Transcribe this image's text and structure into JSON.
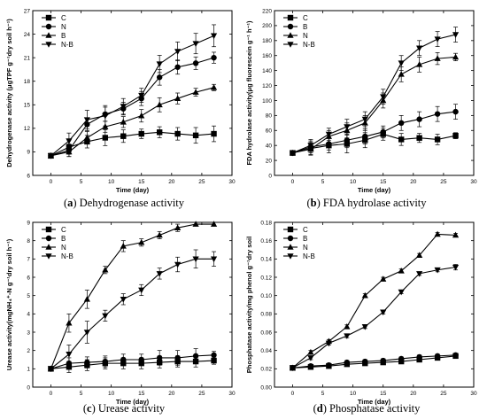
{
  "chart_data": [
    {
      "type": "line",
      "panel_label": "(a)",
      "caption": "Dehydrogenase activity",
      "xlabel": "Time (day)",
      "ylabel": "Dehydrogenase activity (μgTPF g⁻¹dry soil h⁻¹)",
      "xlim": [
        -3,
        30
      ],
      "ylim": [
        6,
        27
      ],
      "xticks": [
        0,
        5,
        10,
        15,
        20,
        25,
        30
      ],
      "yticks": [
        6,
        9,
        12,
        15,
        18,
        21,
        24,
        27
      ],
      "legend_position": "top-left",
      "x": [
        0,
        3,
        6,
        9,
        12,
        15,
        18,
        21,
        24,
        27
      ],
      "series": [
        {
          "name": "C",
          "marker": "square",
          "values": [
            8.5,
            9.6,
            10.3,
            10.8,
            11.0,
            11.3,
            11.5,
            11.3,
            11.1,
            11.3
          ],
          "err": [
            0.2,
            0.9,
            0.8,
            1.0,
            0.8,
            0.6,
            0.7,
            0.8,
            1.0,
            1.0
          ]
        },
        {
          "name": "N",
          "marker": "circle",
          "values": [
            8.5,
            9.2,
            12.5,
            13.8,
            14.5,
            15.8,
            18.5,
            19.8,
            20.3,
            21.0
          ],
          "err": [
            0.2,
            0.8,
            0.8,
            0.9,
            0.8,
            0.9,
            1.0,
            0.9,
            0.8,
            0.7
          ]
        },
        {
          "name": "B",
          "marker": "triangle-up",
          "values": [
            8.5,
            9.0,
            10.8,
            12.2,
            12.8,
            13.6,
            15.0,
            15.8,
            16.6,
            17.2
          ],
          "err": [
            0.2,
            0.6,
            0.8,
            0.7,
            0.7,
            0.8,
            0.9,
            0.7,
            0.5,
            0.4
          ]
        },
        {
          "name": "N-B",
          "marker": "triangle-down",
          "values": [
            8.5,
            10.4,
            13.1,
            13.6,
            14.8,
            16.2,
            20.2,
            21.8,
            22.8,
            23.8
          ],
          "err": [
            0.2,
            1.0,
            1.2,
            1.3,
            1.0,
            0.9,
            1.1,
            1.2,
            1.3,
            1.4
          ]
        }
      ]
    },
    {
      "type": "line",
      "panel_label": "(b)",
      "caption": "FDA hydrolase activity",
      "xlabel": "Time (day)",
      "ylabel": "FDA hydrolase activity(μg fluorescein g⁻¹ h⁻¹)",
      "xlim": [
        -3,
        30
      ],
      "ylim": [
        0,
        220
      ],
      "xticks": [
        0,
        5,
        10,
        15,
        20,
        25,
        30
      ],
      "yticks": [
        0,
        20,
        40,
        60,
        80,
        100,
        120,
        140,
        160,
        180,
        200,
        220
      ],
      "legend_position": "top-left",
      "x": [
        0,
        3,
        6,
        9,
        12,
        15,
        18,
        21,
        24,
        27
      ],
      "series": [
        {
          "name": "C",
          "marker": "square",
          "values": [
            30,
            36,
            40,
            42,
            47,
            55,
            48,
            50,
            48,
            53
          ],
          "err": [
            3,
            8,
            10,
            12,
            10,
            8,
            8,
            6,
            7,
            4
          ]
        },
        {
          "name": "B",
          "marker": "circle",
          "values": [
            30,
            38,
            42,
            47,
            52,
            58,
            70,
            75,
            82,
            85
          ],
          "err": [
            3,
            8,
            8,
            10,
            10,
            8,
            10,
            10,
            10,
            10
          ]
        },
        {
          "name": "N",
          "marker": "triangle-up",
          "values": [
            30,
            35,
            52,
            60,
            70,
            100,
            135,
            148,
            156,
            158
          ],
          "err": [
            3,
            8,
            8,
            10,
            10,
            10,
            10,
            10,
            8,
            5
          ]
        },
        {
          "name": "N-B",
          "marker": "triangle-down",
          "values": [
            30,
            40,
            55,
            65,
            75,
            105,
            150,
            170,
            182,
            188
          ],
          "err": [
            3,
            8,
            8,
            10,
            10,
            10,
            10,
            10,
            10,
            10
          ]
        }
      ]
    },
    {
      "type": "line",
      "panel_label": "(c)",
      "caption": "Urease activity",
      "xlabel": "Time (day)",
      "ylabel": "Urease activity(mgNH₄⁺-N g⁻¹dry soil h⁻¹)",
      "xlim": [
        -3,
        30
      ],
      "ylim": [
        0,
        9
      ],
      "xticks": [
        0,
        5,
        10,
        15,
        20,
        25,
        30
      ],
      "yticks": [
        0,
        1,
        2,
        3,
        4,
        5,
        6,
        7,
        8,
        9
      ],
      "legend_position": "top-left",
      "x": [
        0,
        3,
        6,
        9,
        12,
        15,
        18,
        21,
        24,
        27
      ],
      "series": [
        {
          "name": "C",
          "marker": "square",
          "values": [
            1.0,
            1.1,
            1.2,
            1.3,
            1.3,
            1.3,
            1.35,
            1.4,
            1.4,
            1.45
          ],
          "err": [
            0.1,
            0.3,
            0.3,
            0.3,
            0.3,
            0.3,
            0.3,
            0.3,
            0.3,
            0.2
          ]
        },
        {
          "name": "B",
          "marker": "circle",
          "values": [
            1.0,
            1.3,
            1.35,
            1.4,
            1.5,
            1.5,
            1.6,
            1.6,
            1.7,
            1.75
          ],
          "err": [
            0.1,
            0.3,
            0.3,
            0.3,
            0.3,
            0.3,
            0.4,
            0.4,
            0.4,
            0.2
          ]
        },
        {
          "name": "N",
          "marker": "triangle-up",
          "values": [
            1.0,
            3.5,
            4.8,
            6.4,
            7.7,
            7.9,
            8.3,
            8.7,
            8.9,
            8.9
          ],
          "err": [
            0.1,
            0.5,
            0.5,
            0.2,
            0.3,
            0.2,
            0.2,
            0.2,
            0.1,
            0.1
          ]
        },
        {
          "name": "N-B",
          "marker": "triangle-down",
          "values": [
            1.0,
            1.8,
            3.0,
            3.9,
            4.8,
            5.3,
            6.2,
            6.7,
            7.0,
            7.0
          ],
          "err": [
            0.1,
            0.5,
            0.6,
            0.3,
            0.3,
            0.3,
            0.3,
            0.4,
            0.5,
            0.4
          ]
        }
      ]
    },
    {
      "type": "line",
      "panel_label": "(d)",
      "caption": "Phosphatase activity",
      "xlabel": "Time (day)",
      "ylabel": "Phosphatase activity/mg phenol g⁻¹dry soil",
      "xlim": [
        -3,
        30
      ],
      "ylim": [
        0.0,
        0.18
      ],
      "xticks": [
        0,
        5,
        10,
        15,
        20,
        25,
        30
      ],
      "yticks": [
        0.0,
        0.02,
        0.04,
        0.06,
        0.08,
        0.1,
        0.12,
        0.14,
        0.16,
        0.18
      ],
      "legend_position": "top-left",
      "x": [
        0,
        3,
        6,
        9,
        12,
        15,
        18,
        21,
        24,
        27
      ],
      "series": [
        {
          "name": "C",
          "marker": "square",
          "values": [
            0.021,
            0.022,
            0.023,
            0.025,
            0.026,
            0.027,
            0.028,
            0.03,
            0.032,
            0.034
          ],
          "err": [
            0.001,
            0.002,
            0.002,
            0.002,
            0.002,
            0.002,
            0.002,
            0.002,
            0.002,
            0.002
          ]
        },
        {
          "name": "B",
          "marker": "circle",
          "values": [
            0.021,
            0.023,
            0.024,
            0.027,
            0.028,
            0.029,
            0.031,
            0.033,
            0.034,
            0.035
          ],
          "err": [
            0.001,
            0.002,
            0.002,
            0.002,
            0.002,
            0.002,
            0.002,
            0.002,
            0.002,
            0.002
          ]
        },
        {
          "name": "N",
          "marker": "triangle-up",
          "values": [
            0.021,
            0.038,
            0.05,
            0.066,
            0.1,
            0.118,
            0.127,
            0.144,
            0.167,
            0.166
          ],
          "err": [
            0.001,
            0.002,
            0.002,
            0.002,
            0.002,
            0.002,
            0.002,
            0.002,
            0.002,
            0.002
          ]
        },
        {
          "name": "N-B",
          "marker": "triangle-down",
          "values": [
            0.021,
            0.032,
            0.048,
            0.056,
            0.066,
            0.082,
            0.104,
            0.124,
            0.128,
            0.131
          ],
          "err": [
            0.001,
            0.002,
            0.002,
            0.002,
            0.002,
            0.002,
            0.002,
            0.002,
            0.002,
            0.003
          ]
        }
      ]
    }
  ]
}
